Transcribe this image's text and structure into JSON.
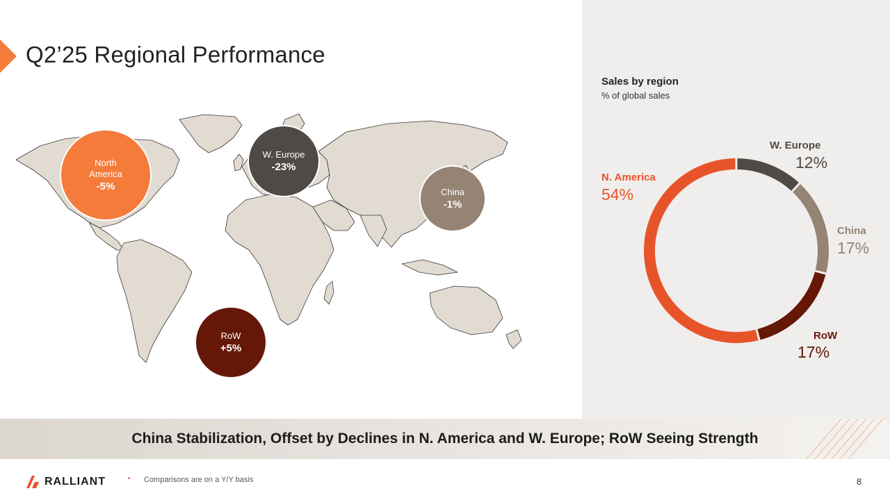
{
  "header": {
    "title": "Q2’25 Regional Performance"
  },
  "map": {
    "bubbles": [
      {
        "region": "North America",
        "change": "-5%",
        "color": "#f57b3a"
      },
      {
        "region": "W. Europe",
        "change": "-23%",
        "color": "#4f4a45"
      },
      {
        "region": "China",
        "change": "-1%",
        "color": "#958373"
      },
      {
        "region": "RoW",
        "change": "+5%",
        "color": "#651708"
      }
    ]
  },
  "chart_data": {
    "type": "pie",
    "title": "Sales by region",
    "subtitle": "% of global sales",
    "donut": true,
    "slices": [
      {
        "label": "W. Europe",
        "value": 12,
        "display": "12%",
        "color": "#4f4a45"
      },
      {
        "label": "China",
        "value": 17,
        "display": "17%",
        "color": "#958373"
      },
      {
        "label": "RoW",
        "value": 17,
        "display": "17%",
        "color": "#651708"
      },
      {
        "label": "N. America",
        "value": 54,
        "display": "54%",
        "color": "#e8542a"
      }
    ]
  },
  "banner": {
    "text": "China Stabilization, Offset by Declines in N. America and W. Europe; RoW Seeing Strength"
  },
  "footer": {
    "logo_text": "RALLIANT",
    "bullet": "•",
    "note": "Comparisons are on a Y/Y basis",
    "page_number": "8"
  },
  "colors": {
    "accent": "#e8542a",
    "panel": "#f0eeec",
    "land": "#e1dbd2"
  }
}
